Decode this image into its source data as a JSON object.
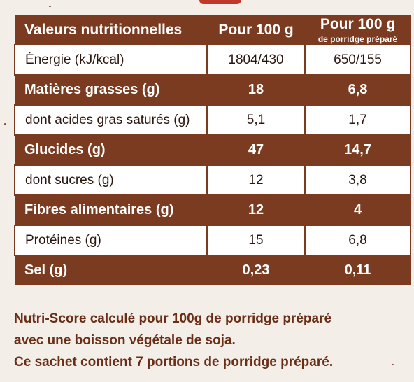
{
  "table": {
    "header": {
      "col1": "Valeurs nutritionnelles",
      "col2": "Pour 100 g",
      "col3": "Pour 100 g",
      "col3_sub": "de porridge préparé"
    },
    "rows": [
      {
        "label": "Énergie (kJ/kcal)",
        "per100": "1804/430",
        "prepared": "650/155"
      },
      {
        "label": "Matières grasses (g)",
        "per100": "18",
        "prepared": "6,8"
      },
      {
        "label": "dont acides gras saturés (g)",
        "per100": "5,1",
        "prepared": "1,7"
      },
      {
        "label": "Glucides (g)",
        "per100": "47",
        "prepared": "14,7"
      },
      {
        "label": "dont sucres (g)",
        "per100": "12",
        "prepared": "3,8"
      },
      {
        "label": "Fibres alimentaires (g)",
        "per100": "12",
        "prepared": "4"
      },
      {
        "label": "Protéines (g)",
        "per100": "15",
        "prepared": "6,8"
      },
      {
        "label": "Sel (g)",
        "per100": "0,23",
        "prepared": "0,11"
      }
    ]
  },
  "footnote": {
    "line1": "Nutri-Score calculé pour 100g de porridge préparé",
    "line2": "avec une boisson végétale de soja.",
    "line3": "Ce sachet contient 7 portions de porridge préparé."
  },
  "colors": {
    "brown": "#7a3b21",
    "background": "#f3eee7",
    "accent": "#c0392b"
  }
}
